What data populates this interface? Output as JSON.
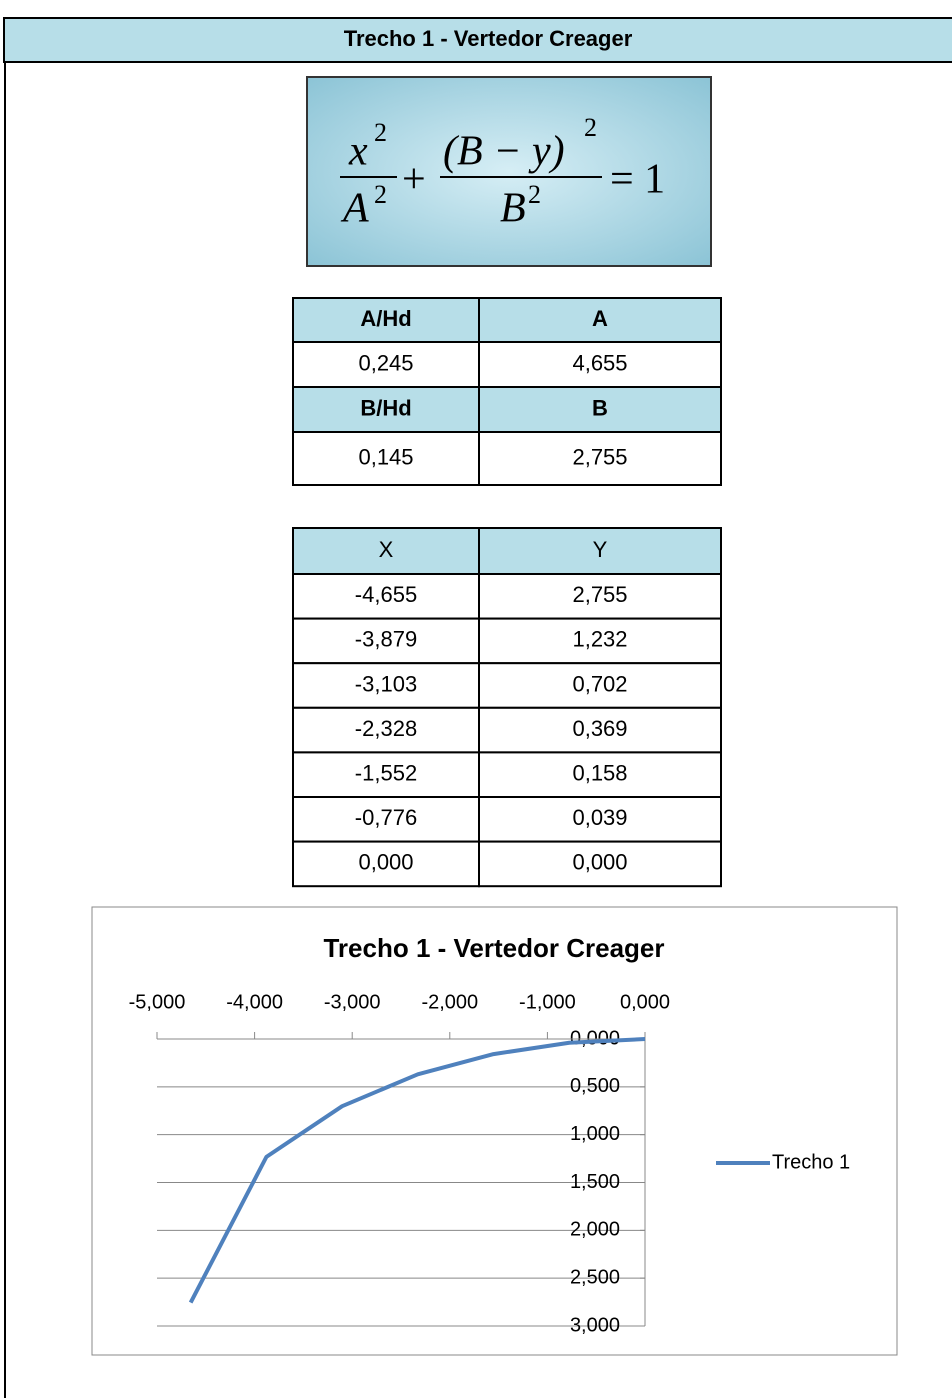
{
  "header": {
    "title": "Trecho 1 - Vertedor Creager"
  },
  "formula": {
    "x": "x",
    "A": "A",
    "power": "2",
    "plus": "+",
    "by": "(B − y)",
    "B": "B",
    "equals": "= 1"
  },
  "params_table": {
    "rows": [
      [
        "A/Hd",
        "A"
      ],
      [
        "0,245",
        "4,655"
      ],
      [
        "B/Hd",
        "B"
      ],
      [
        "0,145",
        "2,755"
      ]
    ]
  },
  "xy_table": {
    "columns": [
      "X",
      "Y"
    ],
    "rows": [
      [
        "-4,655",
        "2,755"
      ],
      [
        "-3,879",
        "1,232"
      ],
      [
        "-3,103",
        "0,702"
      ],
      [
        "-2,328",
        "0,369"
      ],
      [
        "-1,552",
        "0,158"
      ],
      [
        "-0,776",
        "0,039"
      ],
      [
        "0,000",
        "0,000"
      ]
    ]
  },
  "chart_data": {
    "type": "line",
    "title": "Trecho 1 - Vertedor Creager",
    "x": [
      -4.655,
      -3.879,
      -3.103,
      -2.328,
      -1.552,
      -0.776,
      0
    ],
    "series": [
      {
        "name": "Trecho 1",
        "color": "#4f81bd",
        "values": [
          2.755,
          1.232,
          0.702,
          0.369,
          0.158,
          0.039,
          0
        ]
      }
    ],
    "xlim": [
      -5,
      0
    ],
    "xticks": [
      {
        "value": -5,
        "label": "-5,000"
      },
      {
        "value": -4,
        "label": "-4,000"
      },
      {
        "value": -3,
        "label": "-3,000"
      },
      {
        "value": -2,
        "label": "-2,000"
      },
      {
        "value": -1,
        "label": "-1,000"
      },
      {
        "value": 0,
        "label": "0,000"
      }
    ],
    "ylim": [
      0,
      3
    ],
    "yticks": [
      {
        "value": 0,
        "label": "0,000"
      },
      {
        "value": 0.5,
        "label": "0,500"
      },
      {
        "value": 1,
        "label": "1,000"
      },
      {
        "value": 1.5,
        "label": "1,500"
      },
      {
        "value": 2,
        "label": "2,000"
      },
      {
        "value": 2.5,
        "label": "2,500"
      },
      {
        "value": 3,
        "label": "3,000"
      }
    ],
    "y_inverted": true,
    "x_axis_position": "top",
    "grid": true,
    "legend": "right"
  }
}
